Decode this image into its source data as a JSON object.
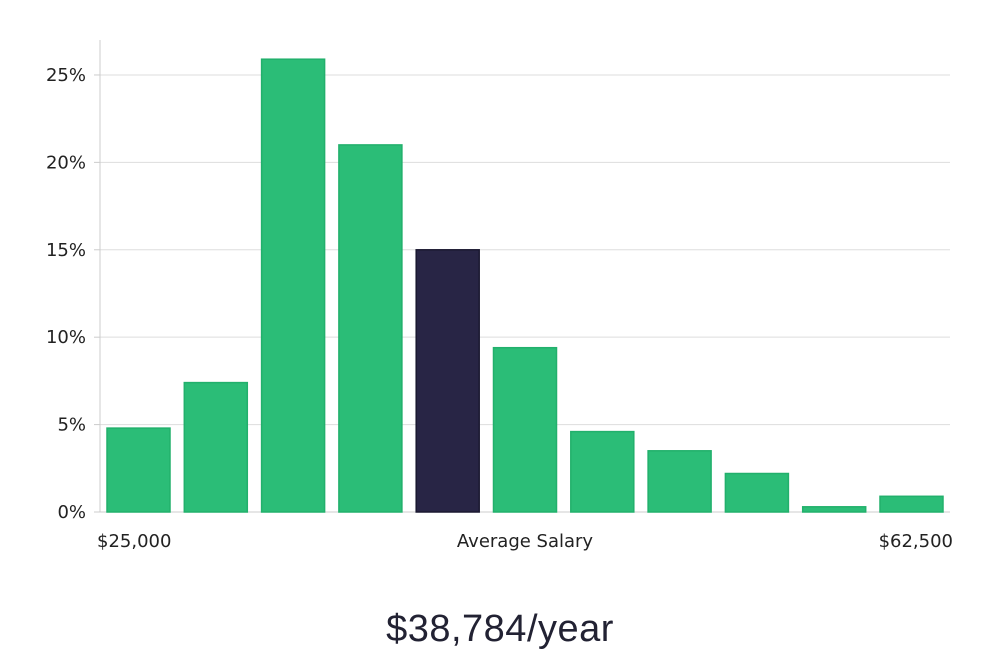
{
  "chart_data": {
    "type": "bar",
    "categories": [
      "",
      "",
      "",
      "",
      "",
      "",
      "",
      "",
      "",
      "",
      ""
    ],
    "values": [
      4.8,
      7.4,
      25.9,
      21.0,
      15.0,
      9.4,
      4.6,
      3.5,
      2.2,
      0.3,
      0.9
    ],
    "highlight_index": 4,
    "ylim": [
      0,
      27
    ],
    "yticks": [
      0,
      5,
      10,
      15,
      20,
      25
    ],
    "ytick_labels": [
      "0%",
      "5%",
      "10%",
      "15%",
      "20%",
      "25%"
    ],
    "x_labels": {
      "left": "$25,000",
      "center": "Average Salary",
      "right": "$62,500"
    },
    "grid": true,
    "colors": {
      "bar": "#2bbd77",
      "bar_stroke": "#22b06c",
      "highlight": "#282545",
      "grid": "#dddddd",
      "axis": "#cccccc"
    }
  },
  "summary": {
    "salary_text": "$38,784/year"
  }
}
